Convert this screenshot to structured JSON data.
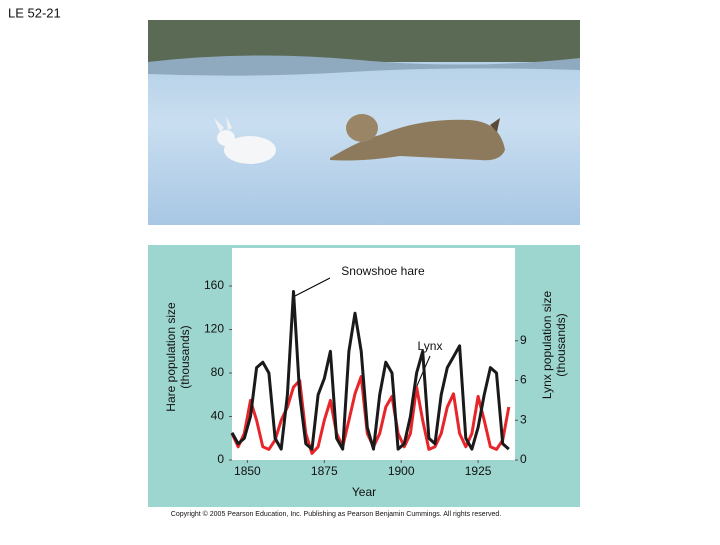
{
  "slide_label": "LE 52-21",
  "copyright": "Copyright © 2005 Pearson Education, Inc. Publishing as Pearson Benjamin Cummings. All rights reserved.",
  "chart_data": {
    "type": "line",
    "xlabel": "Year",
    "ylabel": [
      "Hare population size",
      "(thousands)"
    ],
    "y2label": [
      "Lynx population size",
      "(thousands)"
    ],
    "annotations": [
      "Snowshoe hare",
      "Lynx"
    ],
    "x": [
      1845,
      1847,
      1849,
      1851,
      1853,
      1855,
      1857,
      1859,
      1861,
      1863,
      1865,
      1867,
      1869,
      1871,
      1873,
      1875,
      1877,
      1879,
      1881,
      1883,
      1885,
      1887,
      1889,
      1891,
      1893,
      1895,
      1897,
      1899,
      1901,
      1903,
      1905,
      1907,
      1909,
      1911,
      1913,
      1915,
      1917,
      1919,
      1921,
      1923,
      1925,
      1927,
      1929,
      1931,
      1933,
      1935
    ],
    "series": [
      {
        "name": "Snowshoe hare",
        "color": "#1a1a1a",
        "values": [
          25,
          15,
          20,
          40,
          85,
          90,
          80,
          20,
          10,
          60,
          155,
          60,
          15,
          10,
          60,
          75,
          100,
          20,
          10,
          100,
          135,
          100,
          30,
          10,
          60,
          90,
          80,
          10,
          15,
          40,
          80,
          100,
          20,
          15,
          60,
          85,
          95,
          105,
          20,
          10,
          30,
          60,
          85,
          80,
          15,
          10
        ]
      },
      {
        "name": "Lynx",
        "color": "#e8262a",
        "axis": "y2",
        "values": [
          2,
          1,
          2,
          4.5,
          3,
          1,
          0.8,
          1.5,
          3,
          4,
          5.5,
          6,
          2,
          0.5,
          1,
          3,
          4.5,
          2,
          1,
          3,
          5,
          6.3,
          2,
          1,
          2,
          4,
          4.8,
          2,
          1,
          2,
          5.5,
          3,
          0.8,
          1,
          2,
          4,
          5,
          2,
          1,
          2,
          4.8,
          3,
          1,
          0.8,
          1.5,
          4
        ]
      }
    ],
    "xlim": [
      1845,
      1937
    ],
    "xticks": [
      1850,
      1875,
      1900,
      1925
    ],
    "ylim": [
      0,
      195
    ],
    "yticks": [
      0,
      40,
      80,
      120,
      160
    ],
    "y2lim": [
      0,
      16
    ],
    "y2ticks": [
      0,
      3,
      6,
      9
    ]
  }
}
